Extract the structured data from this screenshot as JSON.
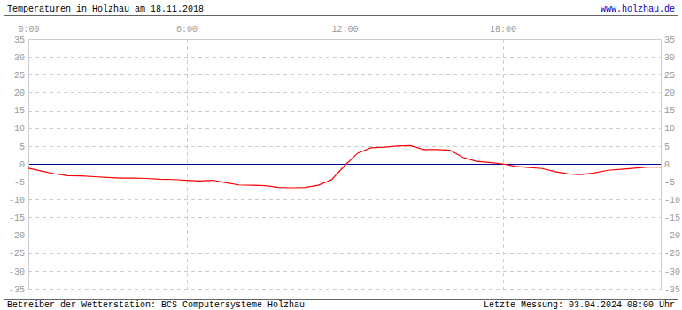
{
  "chart_data": {
    "type": "line",
    "title": "Temperaturen in Holzhau am 18.11.2018",
    "annotations": [
      "www.holzhau.de",
      "Betreiber der Wetterstation: BCS Computersysteme Holzhau",
      "Letzte Messung: 03.04.2024 08:00 Uhr"
    ],
    "x": [
      0,
      0.5,
      1,
      1.5,
      2,
      2.5,
      3,
      3.5,
      4,
      4.5,
      5,
      5.5,
      6,
      6.5,
      7,
      7.5,
      8,
      8.5,
      9,
      9.5,
      10,
      10.5,
      11,
      11.5,
      12,
      12.5,
      13,
      13.5,
      14,
      14.5,
      15,
      15.5,
      16,
      16.5,
      17,
      17.5,
      18,
      18.5,
      19,
      19.5,
      20,
      20.5,
      21,
      21.5,
      22,
      22.5,
      23,
      23.5,
      24
    ],
    "values": [
      -1.2,
      -2.0,
      -2.8,
      -3.3,
      -3.4,
      -3.6,
      -3.8,
      -4.0,
      -4.0,
      -4.1,
      -4.3,
      -4.4,
      -4.6,
      -4.8,
      -4.6,
      -5.3,
      -5.9,
      -6.0,
      -6.1,
      -6.6,
      -6.7,
      -6.6,
      -6.0,
      -4.5,
      -0.5,
      3.0,
      4.5,
      4.7,
      5.0,
      5.1,
      4.0,
      4.0,
      3.8,
      1.8,
      0.7,
      0.4,
      0.0,
      -0.7,
      -1.0,
      -1.3,
      -2.2,
      -2.8,
      -3.0,
      -2.5,
      -1.8,
      -1.5,
      -1.2,
      -0.9,
      -0.9
    ],
    "color": "#ff0000",
    "xlim": [
      0,
      24
    ],
    "xticks": [
      {
        "value": 0,
        "label": "0:00"
      },
      {
        "value": 6,
        "label": "6:00"
      },
      {
        "value": 12,
        "label": "12:00"
      },
      {
        "value": 18,
        "label": "18:00"
      }
    ],
    "ylim": [
      -35,
      35
    ],
    "yticks": [
      35,
      30,
      25,
      20,
      15,
      10,
      5,
      0,
      -5,
      -10,
      -15,
      -20,
      -25,
      -30,
      -35
    ],
    "grid": true
  }
}
